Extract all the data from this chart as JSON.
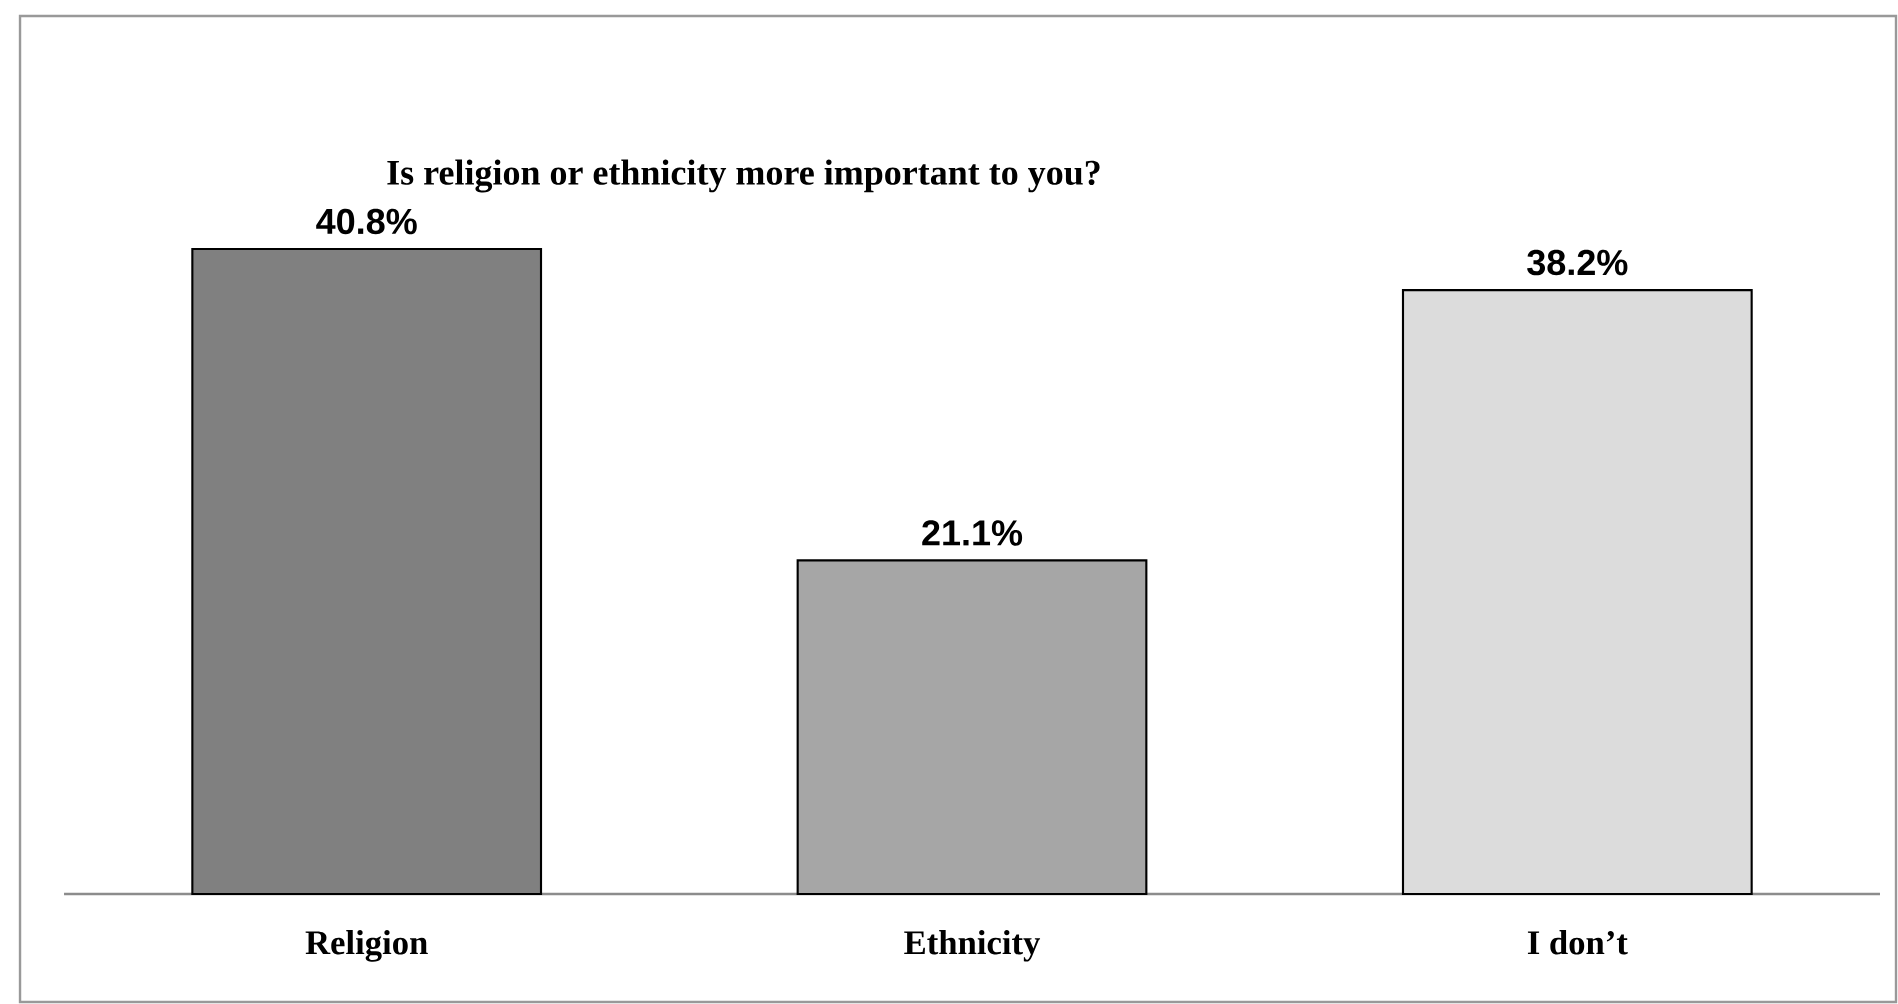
{
  "chart_data": {
    "type": "bar",
    "title": "Is religion or ethnicity more important to you?",
    "categories": [
      "Religion",
      "Ethnicity",
      "I don’t"
    ],
    "values": [
      40.8,
      21.1,
      38.2
    ],
    "value_labels": [
      "40.8%",
      "21.1%",
      "38.2%"
    ],
    "colors": [
      "#808080",
      "#a6a6a6",
      "#dcdcdc"
    ]
  }
}
